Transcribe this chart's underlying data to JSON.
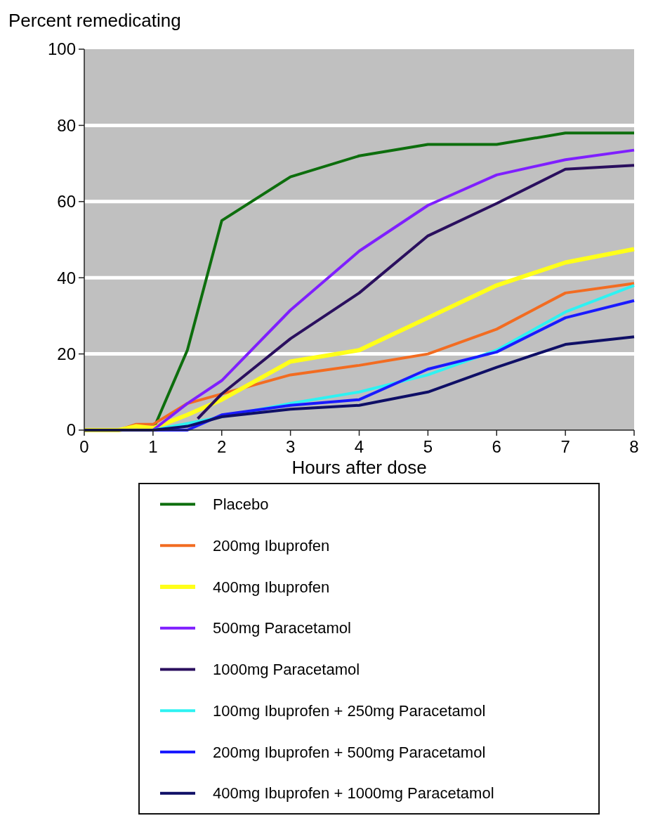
{
  "chart_data": {
    "type": "line",
    "ylabel": "Percent remedicating",
    "xlabel": "Hours after dose",
    "xlim": [
      0,
      8
    ],
    "xticks": [
      0,
      1,
      2,
      3,
      4,
      5,
      6,
      7,
      8
    ],
    "ylim": [
      0,
      100
    ],
    "yticks": [
      0,
      20,
      40,
      60,
      80,
      100
    ],
    "grid": "y",
    "legend": "bottom",
    "line_style": "solid",
    "marker": "none",
    "series": [
      {
        "name": "Placebo",
        "color": "#0d6e0d",
        "x": [
          0,
          1,
          1.5,
          2,
          3,
          4,
          5,
          6,
          7,
          8
        ],
        "values": [
          0,
          0,
          21,
          55,
          66.5,
          72,
          75,
          75,
          78,
          78
        ]
      },
      {
        "name": "200mg Ibuprofen",
        "color": "#f26c21",
        "x": [
          0,
          0.5,
          0.75,
          1,
          1.5,
          3,
          4,
          5,
          6,
          7,
          8
        ],
        "values": [
          0,
          0,
          1.5,
          1.5,
          7,
          14.5,
          17,
          20,
          26.5,
          36,
          38.5
        ]
      },
      {
        "name": "400mg Ibuprofen",
        "color": "#ffff1a",
        "x": [
          0,
          0.5,
          0.75,
          1,
          1.5,
          2,
          3,
          4,
          5,
          6,
          7,
          8
        ],
        "values": [
          0,
          0,
          1,
          0.5,
          4,
          8,
          18,
          21,
          29.5,
          38,
          44,
          47.5
        ]
      },
      {
        "name": "500mg Paracetamol",
        "color": "#7f1fff",
        "x": [
          0,
          1,
          1.5,
          2,
          3,
          4,
          5,
          6,
          7,
          8
        ],
        "values": [
          0,
          0,
          7,
          13,
          31.5,
          47,
          59,
          67,
          71,
          73.5
        ]
      },
      {
        "name": "1000mg Paracetamol",
        "color": "#2a0f5e",
        "x": [
          1.65,
          2,
          3,
          4,
          5,
          6,
          7,
          8
        ],
        "values": [
          3,
          9.5,
          24,
          36,
          51,
          59.5,
          68.5,
          69.5
        ]
      },
      {
        "name": "100mg Ibuprofen + 250mg Paracetamol",
        "color": "#2ef2f2",
        "x": [
          0,
          1,
          3,
          4,
          5,
          6,
          7,
          8
        ],
        "values": [
          0,
          0,
          7,
          10,
          14.5,
          21,
          31,
          38
        ]
      },
      {
        "name": "200mg Ibuprofen + 500mg Paracetamol",
        "color": "#1a1aff",
        "x": [
          0,
          1,
          1.5,
          2,
          3,
          4,
          5,
          6,
          7,
          8
        ],
        "values": [
          0,
          0,
          0,
          4,
          6.5,
          8,
          16,
          20.5,
          29.5,
          34
        ]
      },
      {
        "name": "400mg Ibuprofen + 1000mg Paracetamol",
        "color": "#0f0f66",
        "x": [
          0,
          1,
          1.5,
          2,
          3,
          4,
          5,
          6,
          7,
          8
        ],
        "values": [
          0,
          0,
          1,
          3.5,
          5.5,
          6.5,
          10,
          16.5,
          22.5,
          24.5
        ]
      }
    ]
  }
}
